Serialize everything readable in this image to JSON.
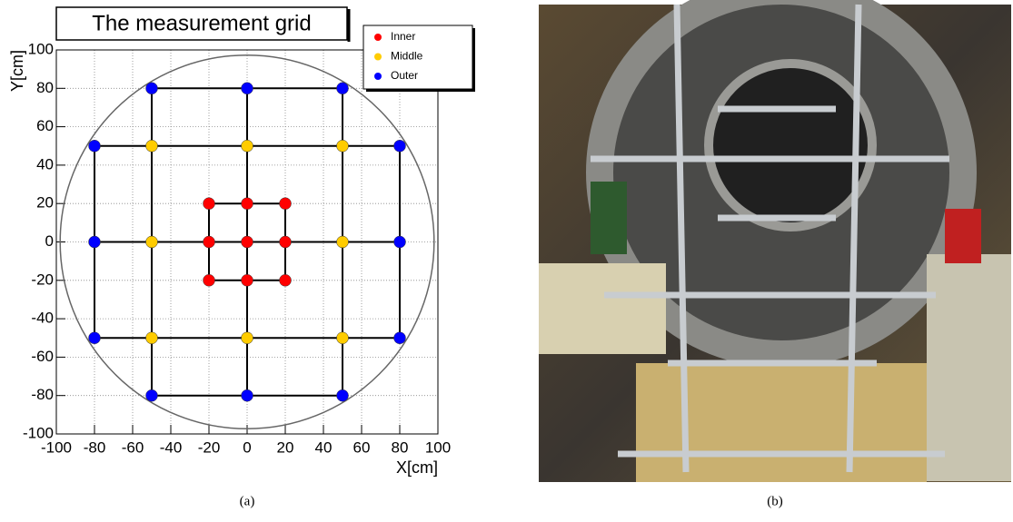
{
  "chart_data": {
    "type": "scatter",
    "title": "The measurement grid",
    "x_label": "X[cm]",
    "y_label": "Y[cm]",
    "xlim": [
      -100,
      100
    ],
    "ylim": [
      -100,
      100
    ],
    "xticks": [
      -100,
      -80,
      -60,
      -40,
      -20,
      0,
      20,
      40,
      60,
      80,
      100
    ],
    "yticks": [
      -100,
      -80,
      -60,
      -40,
      -20,
      0,
      20,
      40,
      60,
      80,
      100
    ],
    "grid": true,
    "legend": "upper right",
    "boundary_radius": 98,
    "series": [
      {
        "name": "Inner",
        "color": "#ff0000",
        "x": [
          -20,
          0,
          20,
          -20,
          0,
          20,
          -20,
          0,
          20
        ],
        "values": [
          20,
          20,
          20,
          0,
          0,
          0,
          -20,
          -20,
          -20
        ]
      },
      {
        "name": "Middle",
        "color": "#ffcc00",
        "x": [
          -50,
          0,
          50,
          -50,
          50,
          -50,
          0,
          50
        ],
        "values": [
          50,
          50,
          50,
          0,
          0,
          -50,
          -50,
          -50
        ]
      },
      {
        "name": "Outer",
        "color": "#0000ff",
        "x": [
          -50,
          0,
          50,
          -80,
          80,
          -80,
          80,
          -80,
          80,
          -50,
          0,
          50
        ],
        "values": [
          80,
          80,
          80,
          50,
          50,
          0,
          0,
          -50,
          -50,
          -80,
          -80,
          -80
        ]
      }
    ]
  },
  "captions": [
    "(a)",
    "(b)"
  ]
}
